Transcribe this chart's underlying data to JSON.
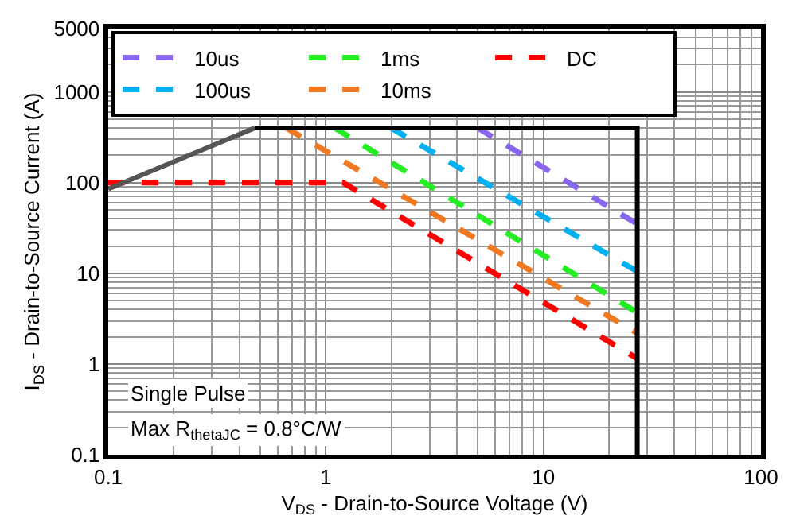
{
  "chart_data": {
    "type": "line",
    "xlabel": "V$_{DS}$ - Drain-to-Source Voltage (V)",
    "ylabel": "I$_{DS}$ - Drain-to-Source Current (A)",
    "log": "xy",
    "grid": true,
    "legend": "top left",
    "line_style": "dashed",
    "marker": "none",
    "xlim": [
      0.1,
      100
    ],
    "xticks": [
      0.1,
      1,
      10,
      100
    ],
    "ylim": [
      0.1,
      5000
    ],
    "yticks": [
      0.1,
      1,
      10,
      100,
      1000,
      5000
    ],
    "series": [
      {
        "name": "10us",
        "color": "#8866ee",
        "x": [
          5,
          27
        ],
        "values": [
          400,
          35
        ]
      },
      {
        "name": "1ms",
        "color": "#22ee22",
        "x": [
          1.1,
          27
        ],
        "values": [
          400,
          3.7
        ]
      },
      {
        "name": "DC",
        "color": "#ff0000",
        "x": [
          0.1,
          1.2,
          27
        ],
        "values": [
          100,
          100,
          1.15
        ]
      },
      {
        "name": "100us",
        "color": "#00b0f0",
        "x": [
          2,
          27
        ],
        "values": [
          400,
          10.5
        ]
      },
      {
        "name": "10ms",
        "color": "#f07820",
        "x": [
          0.66,
          27
        ],
        "values": [
          400,
          2.2
        ]
      },
      {
        "color": "#555555",
        "line_style": "solid",
        "x": [
          0.1,
          0.47
        ],
        "values": [
          85,
          400
        ]
      },
      {
        "color": "#000000",
        "line_style": "solid",
        "x": [
          0.47,
          27,
          27
        ],
        "values": [
          400,
          400,
          0.1
        ]
      }
    ],
    "annotations": [
      "Single Pulse",
      "Max R$_{thetaJC}$ = 0.8°C/W"
    ]
  }
}
